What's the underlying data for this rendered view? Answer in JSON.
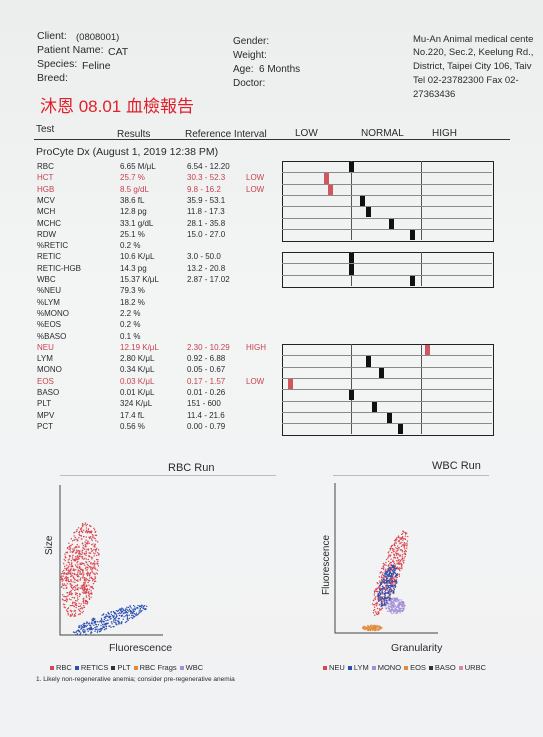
{
  "client": {
    "label": "Client:",
    "value": "(0808001)"
  },
  "patient": {
    "label": "Patient Name:",
    "value": "CAT"
  },
  "species": {
    "label": "Species:",
    "value": "Feline"
  },
  "breed": {
    "label": "Breed:"
  },
  "gender": {
    "label": "Gender:"
  },
  "weight": {
    "label": "Weight:"
  },
  "age": {
    "label": "Age:",
    "value": "6 Months"
  },
  "doctor": {
    "label": "Doctor:"
  },
  "clinic": {
    "line1": "Mu-An Animal medical cente",
    "line2": "No.220, Sec.2, Keelung Rd.,",
    "line3": "District, Taipei City 106, Taiv",
    "line4": "Tel 02-23782300  Fax 02-",
    "line5": "27363436"
  },
  "title_cn": "沐恩 08.01 血檢報告",
  "columns": {
    "test": "Test",
    "results": "Results",
    "ref": "Reference Interval",
    "low": "LOW",
    "normal": "NORMAL",
    "high": "HIGH"
  },
  "procyte": "ProCyte Dx (August 1, 2019 12:38 PM)",
  "rows": [
    {
      "name": "RBC",
      "result": "6.65 M/μL",
      "ref": "6.54 - 12.20",
      "flag": "",
      "red": false
    },
    {
      "name": "HCT",
      "result": "25.7 %",
      "ref": "30.3 - 52.3",
      "flag": "LOW",
      "red": true
    },
    {
      "name": "HGB",
      "result": "8.5 g/dL",
      "ref": "9.8 - 16.2",
      "flag": "LOW",
      "red": true
    },
    {
      "name": "MCV",
      "result": "38.6 fL",
      "ref": "35.9 - 53.1",
      "flag": "",
      "red": false
    },
    {
      "name": "MCH",
      "result": "12.8 pg",
      "ref": "11.8 - 17.3",
      "flag": "",
      "red": false
    },
    {
      "name": "MCHC",
      "result": "33.1 g/dL",
      "ref": "28.1 - 35.8",
      "flag": "",
      "red": false
    },
    {
      "name": "RDW",
      "result": "25.1 %",
      "ref": "15.0 - 27.0",
      "flag": "",
      "red": false
    },
    {
      "name": "%RETIC",
      "result": "0.2 %",
      "ref": "",
      "flag": "",
      "red": false
    },
    {
      "name": "RETIC",
      "result": "10.6 K/μL",
      "ref": "3.0 - 50.0",
      "flag": "",
      "red": false
    },
    {
      "name": "RETIC-HGB",
      "result": "14.3 pg",
      "ref": "13.2 - 20.8",
      "flag": "",
      "red": false
    },
    {
      "name": "WBC",
      "result": "15.37 K/μL",
      "ref": "2.87 - 17.02",
      "flag": "",
      "red": false
    },
    {
      "name": "%NEU",
      "result": "79.3 %",
      "ref": "",
      "flag": "",
      "red": false
    },
    {
      "name": "%LYM",
      "result": "18.2 %",
      "ref": "",
      "flag": "",
      "red": false
    },
    {
      "name": "%MONO",
      "result": "2.2 %",
      "ref": "",
      "flag": "",
      "red": false
    },
    {
      "name": "%EOS",
      "result": "0.2 %",
      "ref": "",
      "flag": "",
      "red": false
    },
    {
      "name": "%BASO",
      "result": "0.1 %",
      "ref": "",
      "flag": "",
      "red": false
    },
    {
      "name": "NEU",
      "result": "12.19 K/μL",
      "ref": "2.30 - 10.29",
      "flag": "HIGH",
      "red": true
    },
    {
      "name": "LYM",
      "result": "2.80 K/μL",
      "ref": "0.92 - 6.88",
      "flag": "",
      "red": false
    },
    {
      "name": "MONO",
      "result": "0.34 K/μL",
      "ref": "0.05 - 0.67",
      "flag": "",
      "red": false
    },
    {
      "name": "EOS",
      "result": "0.03 K/μL",
      "ref": "0.17 - 1.57",
      "flag": "LOW",
      "red": true
    },
    {
      "name": "BASO",
      "result": "0.01 K/μL",
      "ref": "0.01 - 0.26",
      "flag": "",
      "red": false
    },
    {
      "name": "PLT",
      "result": "324 K/μL",
      "ref": "151 - 600",
      "flag": "",
      "red": false
    },
    {
      "name": "MPV",
      "result": "17.4 fL",
      "ref": "11.4 - 21.6",
      "flag": "",
      "red": false
    },
    {
      "name": "PCT",
      "result": "0.56 %",
      "ref": "0.00 - 0.79",
      "flag": "",
      "red": false
    }
  ],
  "rbc_run": {
    "title": "RBC Run",
    "ylabel": "Size",
    "xlabel": "Fluorescence"
  },
  "wbc_run": {
    "title": "WBC Run",
    "ylabel": "Fluorescence",
    "xlabel": "Granularity"
  },
  "rbc_legend": [
    "RBC",
    "RETICS",
    "PLT",
    "RBC Frags",
    "WBC"
  ],
  "wbc_legend": [
    "NEU",
    "LYM",
    "MONO",
    "EOS",
    "BASO",
    "URBC"
  ],
  "footnote": "1. Likely non-regenerative anemia; consider pre-regenerative anemia",
  "colors": {
    "red": "#d9454f",
    "blue": "#2a4fb0",
    "purple": "#a58ed6",
    "orange": "#e08a3a"
  }
}
